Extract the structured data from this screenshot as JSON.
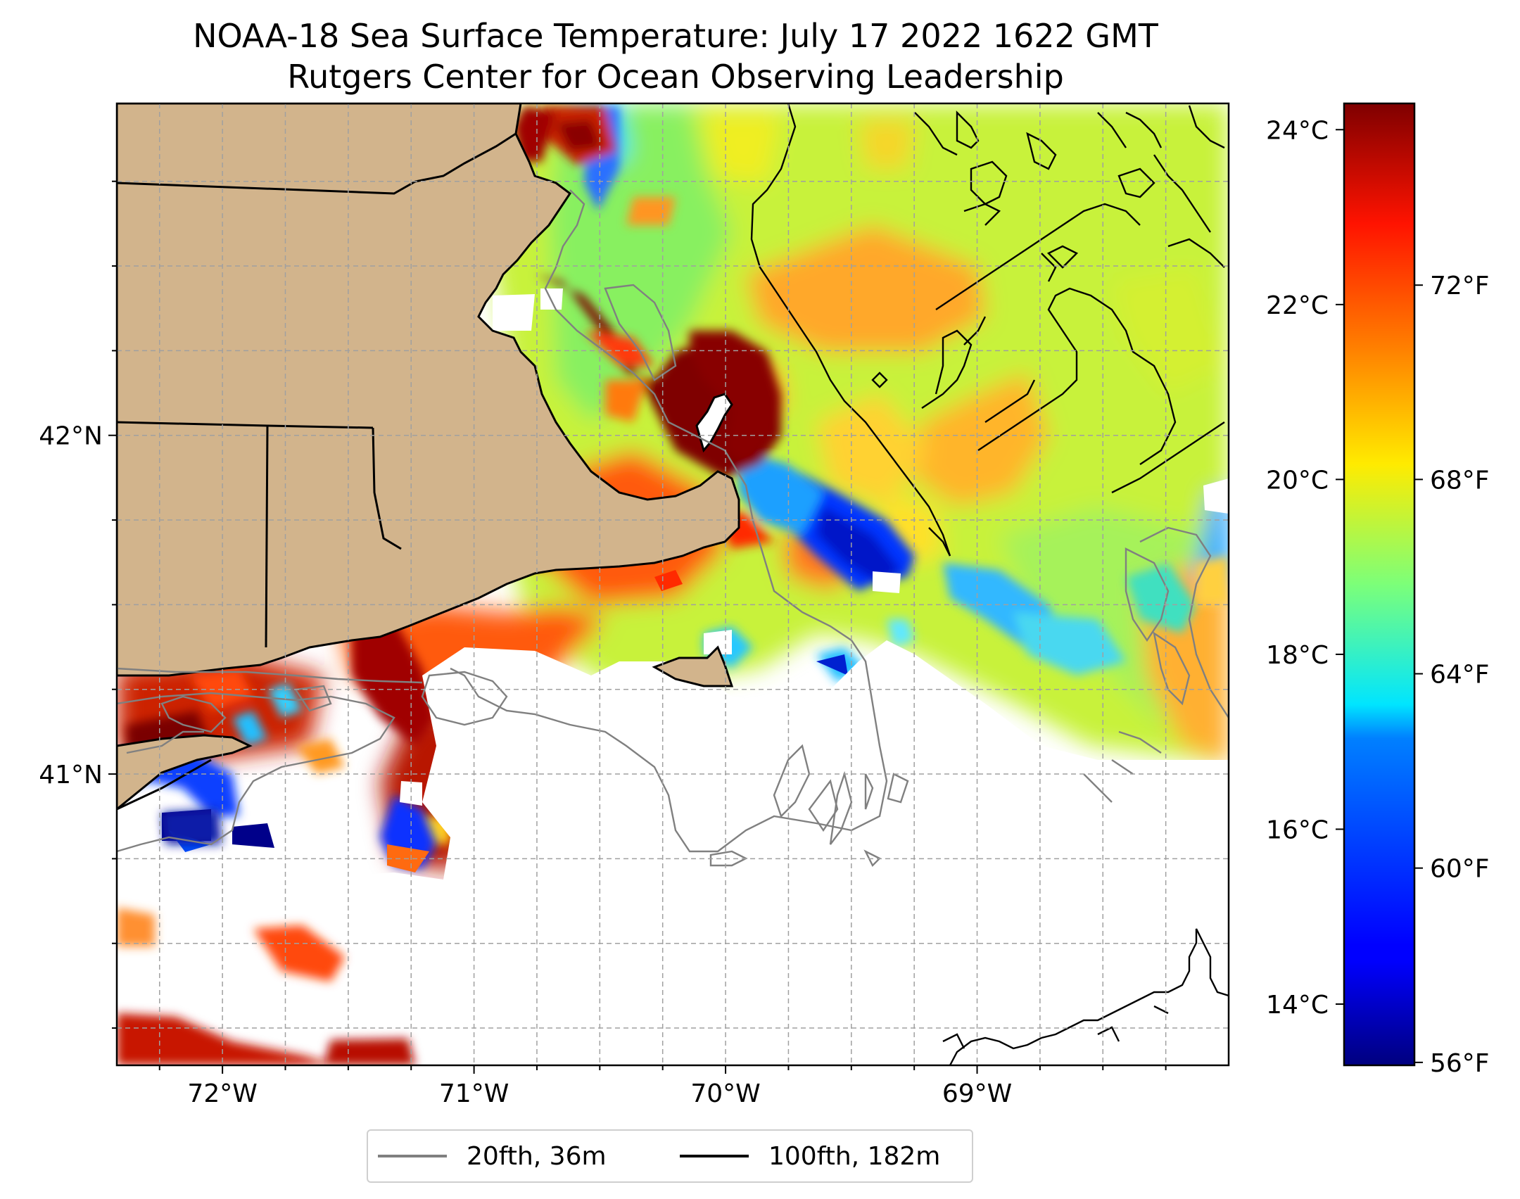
{
  "title": {
    "line1": "NOAA-18 Sea Surface Temperature: July 17 2022 1622 GMT",
    "line2": "Rutgers Center for Ocean Observing Leadership"
  },
  "map": {
    "lon_range": [
      -72.42,
      -68.0
    ],
    "lat_range": [
      40.14,
      42.98
    ],
    "x_ticks": [
      {
        "lon": -72,
        "label": "72°W"
      },
      {
        "lon": -71,
        "label": "71°W"
      },
      {
        "lon": -70,
        "label": "70°W"
      },
      {
        "lon": -69,
        "label": "69°W"
      }
    ],
    "y_ticks": [
      {
        "lat": 42,
        "label": "42°N"
      },
      {
        "lat": 41,
        "label": "41°N"
      }
    ],
    "land_color": "#d2b48c",
    "gridlines": "dashed",
    "missing_data_color": "#ffffff"
  },
  "colorbar": {
    "colormap": "jet",
    "range_c": [
      13.3,
      24.3
    ],
    "celsius_ticks": [
      {
        "value": 14,
        "label": "14°C"
      },
      {
        "value": 16,
        "label": "16°C"
      },
      {
        "value": 18,
        "label": "18°C"
      },
      {
        "value": 20,
        "label": "20°C"
      },
      {
        "value": 22,
        "label": "22°C"
      },
      {
        "value": 24,
        "label": "24°C"
      }
    ],
    "fahrenheit_ticks": [
      {
        "value": 56,
        "label": "56°F"
      },
      {
        "value": 60,
        "label": "60°F"
      },
      {
        "value": 64,
        "label": "64°F"
      },
      {
        "value": 68,
        "label": "68°F"
      },
      {
        "value": 72,
        "label": "72°F"
      }
    ]
  },
  "legend": {
    "items": [
      {
        "label": "20fth, 36m",
        "color": "#808080"
      },
      {
        "label": "100fth, 182m",
        "color": "#000000"
      }
    ]
  }
}
